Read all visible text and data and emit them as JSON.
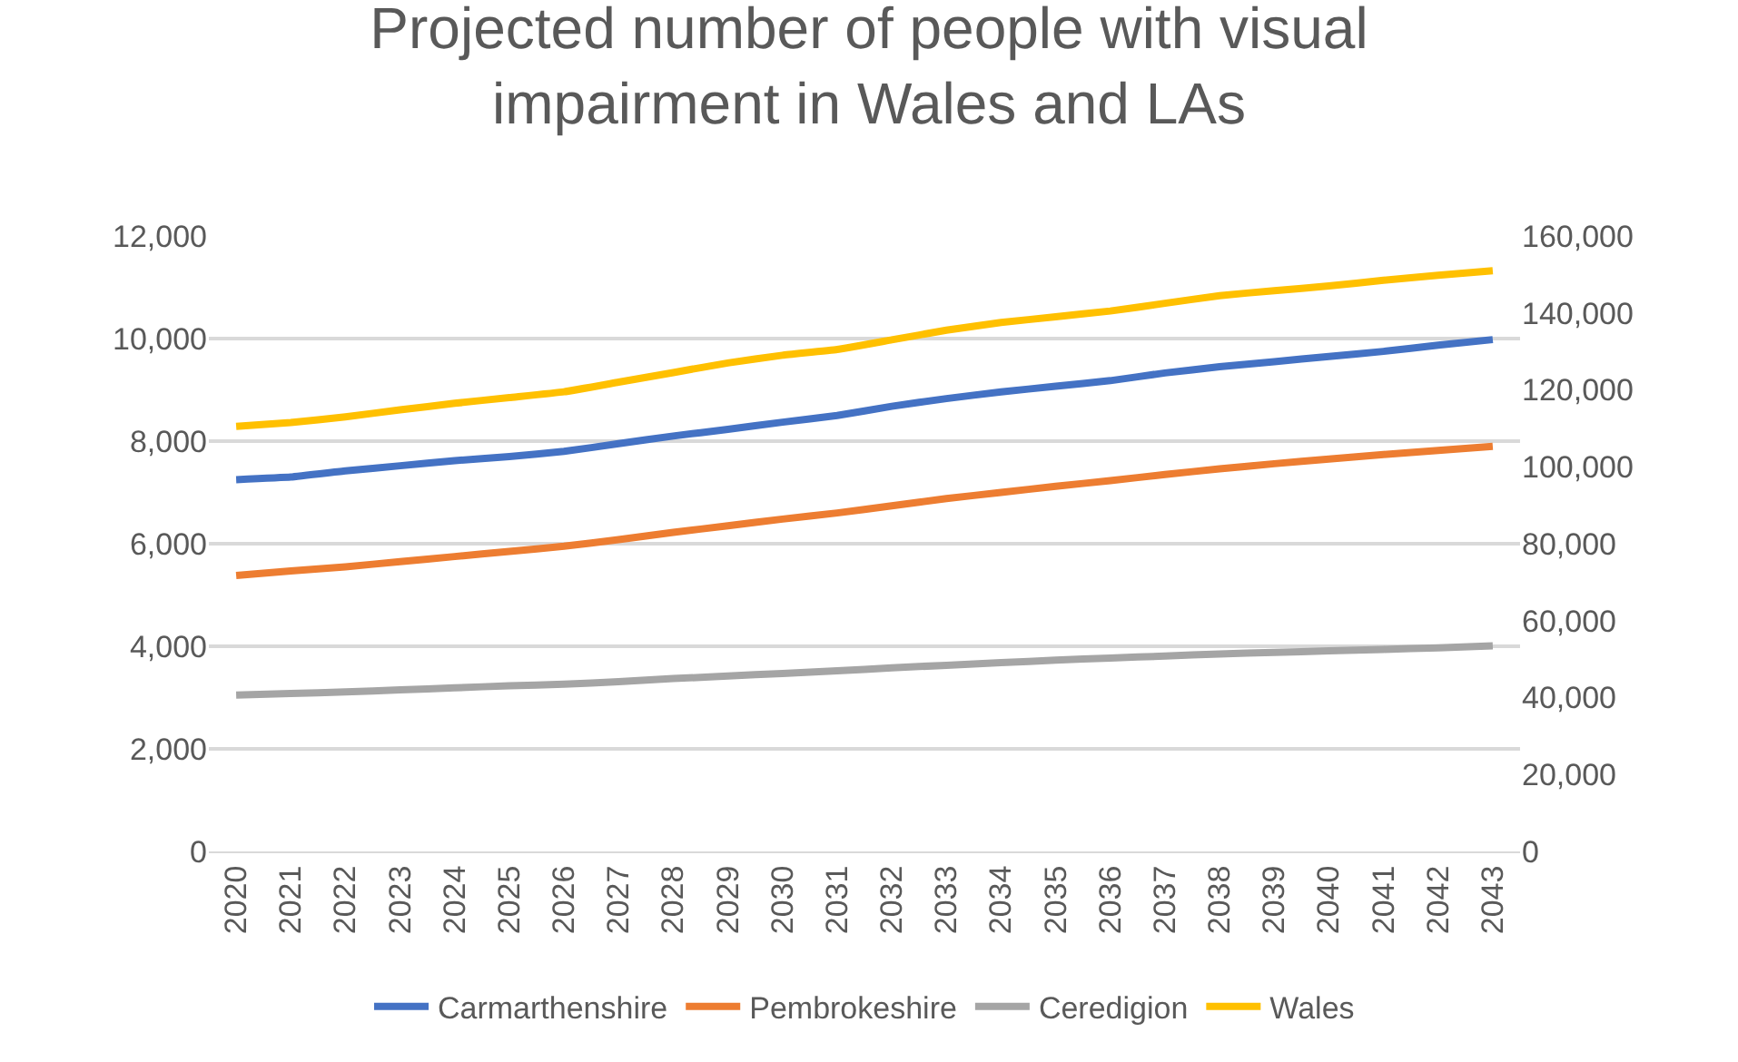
{
  "chart_data": {
    "type": "line",
    "title": "Projected number of people with visual impairment in Wales and LAs",
    "categories": [
      "2020",
      "2021",
      "2022",
      "2023",
      "2024",
      "2025",
      "2026",
      "2027",
      "2028",
      "2029",
      "2030",
      "2031",
      "2032",
      "2033",
      "2034",
      "2035",
      "2036",
      "2037",
      "2038",
      "2039",
      "2040",
      "2041",
      "2042",
      "2043"
    ],
    "series": [
      {
        "name": "Carmarthenshire",
        "color": "#4472c4",
        "values": [
          7250,
          7300,
          7420,
          7520,
          7620,
          7700,
          7800,
          7950,
          8100,
          8230,
          8370,
          8500,
          8680,
          8830,
          8960,
          9070,
          9180,
          9330,
          9450,
          9550,
          9650,
          9750,
          9870,
          9980
        ]
      },
      {
        "name": "Pembrokeshire",
        "color": "#ed7d31",
        "values": [
          5380,
          5470,
          5550,
          5650,
          5750,
          5850,
          5950,
          6080,
          6220,
          6350,
          6480,
          6600,
          6740,
          6880,
          7000,
          7120,
          7230,
          7350,
          7460,
          7560,
          7650,
          7740,
          7820,
          7900
        ]
      },
      {
        "name": "Ceredigion",
        "color": "#a5a5a5",
        "values": [
          3050,
          3080,
          3110,
          3150,
          3190,
          3230,
          3260,
          3310,
          3370,
          3420,
          3470,
          3520,
          3580,
          3630,
          3680,
          3730,
          3770,
          3810,
          3850,
          3880,
          3910,
          3940,
          3970,
          4010
        ]
      },
      {
        "name": "Wales",
        "color": "#ffc000",
        "axis": "y2",
        "values": [
          110500,
          111500,
          113000,
          114800,
          116500,
          118000,
          119500,
          122000,
          124500,
          127000,
          129000,
          130500,
          133000,
          135500,
          137500,
          139000,
          140500,
          142500,
          144500,
          145800,
          147000,
          148500,
          149800,
          151000
        ]
      }
    ],
    "ylim": [
      0,
      12000
    ],
    "yticks": [
      {
        "value": 0,
        "label": "0"
      },
      {
        "value": 2000,
        "label": "2,000"
      },
      {
        "value": 4000,
        "label": "4,000"
      },
      {
        "value": 6000,
        "label": "6,000"
      },
      {
        "value": 8000,
        "label": "8,000"
      },
      {
        "value": 10000,
        "label": "10,000"
      },
      {
        "value": 12000,
        "label": "12,000"
      }
    ],
    "y2lim": [
      0,
      160000
    ],
    "y2ticks": [
      {
        "value": 0,
        "label": "0"
      },
      {
        "value": 20000,
        "label": "20,000"
      },
      {
        "value": 40000,
        "label": "40,000"
      },
      {
        "value": 60000,
        "label": "60,000"
      },
      {
        "value": 80000,
        "label": "80,000"
      },
      {
        "value": 100000,
        "label": "100,000"
      },
      {
        "value": 120000,
        "label": "120,000"
      },
      {
        "value": 140000,
        "label": "140,000"
      },
      {
        "value": 160000,
        "label": "160,000"
      }
    ],
    "grid": "y",
    "legend": "bottom",
    "marker": "none",
    "line_style": "solid"
  }
}
